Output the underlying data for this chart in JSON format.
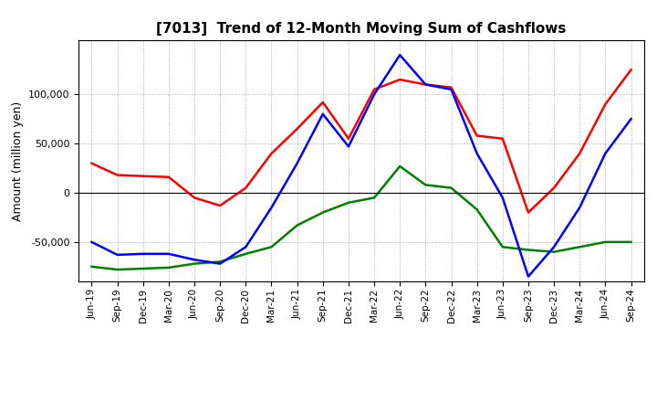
{
  "title": "[7013]  Trend of 12-Month Moving Sum of Cashflows",
  "ylabel": "Amount (million yen)",
  "xlabels": [
    "Jun-19",
    "Sep-19",
    "Dec-19",
    "Mar-20",
    "Jun-20",
    "Sep-20",
    "Dec-20",
    "Mar-21",
    "Jun-21",
    "Sep-21",
    "Dec-21",
    "Mar-22",
    "Jun-22",
    "Sep-22",
    "Dec-22",
    "Mar-23",
    "Jun-23",
    "Sep-23",
    "Dec-23",
    "Mar-24",
    "Jun-24",
    "Sep-24"
  ],
  "operating": [
    30000,
    18000,
    17000,
    16000,
    -5000,
    -13000,
    5000,
    40000,
    65000,
    92000,
    55000,
    105000,
    115000,
    110000,
    107000,
    58000,
    55000,
    -20000,
    5000,
    40000,
    90000,
    125000
  ],
  "investing": [
    -75000,
    -78000,
    -77000,
    -76000,
    -72000,
    -70000,
    -62000,
    -55000,
    -33000,
    -20000,
    -10000,
    -5000,
    27000,
    8000,
    5000,
    -17000,
    -55000,
    -58000,
    -60000,
    -55000,
    -50000,
    -50000
  ],
  "free": [
    -50000,
    -63000,
    -62000,
    -62000,
    -68000,
    -72000,
    -55000,
    -15000,
    30000,
    80000,
    47000,
    100000,
    140000,
    110000,
    105000,
    40000,
    -5000,
    -85000,
    -55000,
    -15000,
    40000,
    75000
  ],
  "ylim": [
    -90000,
    155000
  ],
  "yticks": [
    -50000,
    0,
    50000,
    100000
  ],
  "operating_color": "#ff0000",
  "investing_color": "#008000",
  "free_color": "#0000ff",
  "bg_color": "#ffffff",
  "plot_bg_color": "#ffffff",
  "grid_color": "#aaaaaa",
  "line_width": 1.8
}
